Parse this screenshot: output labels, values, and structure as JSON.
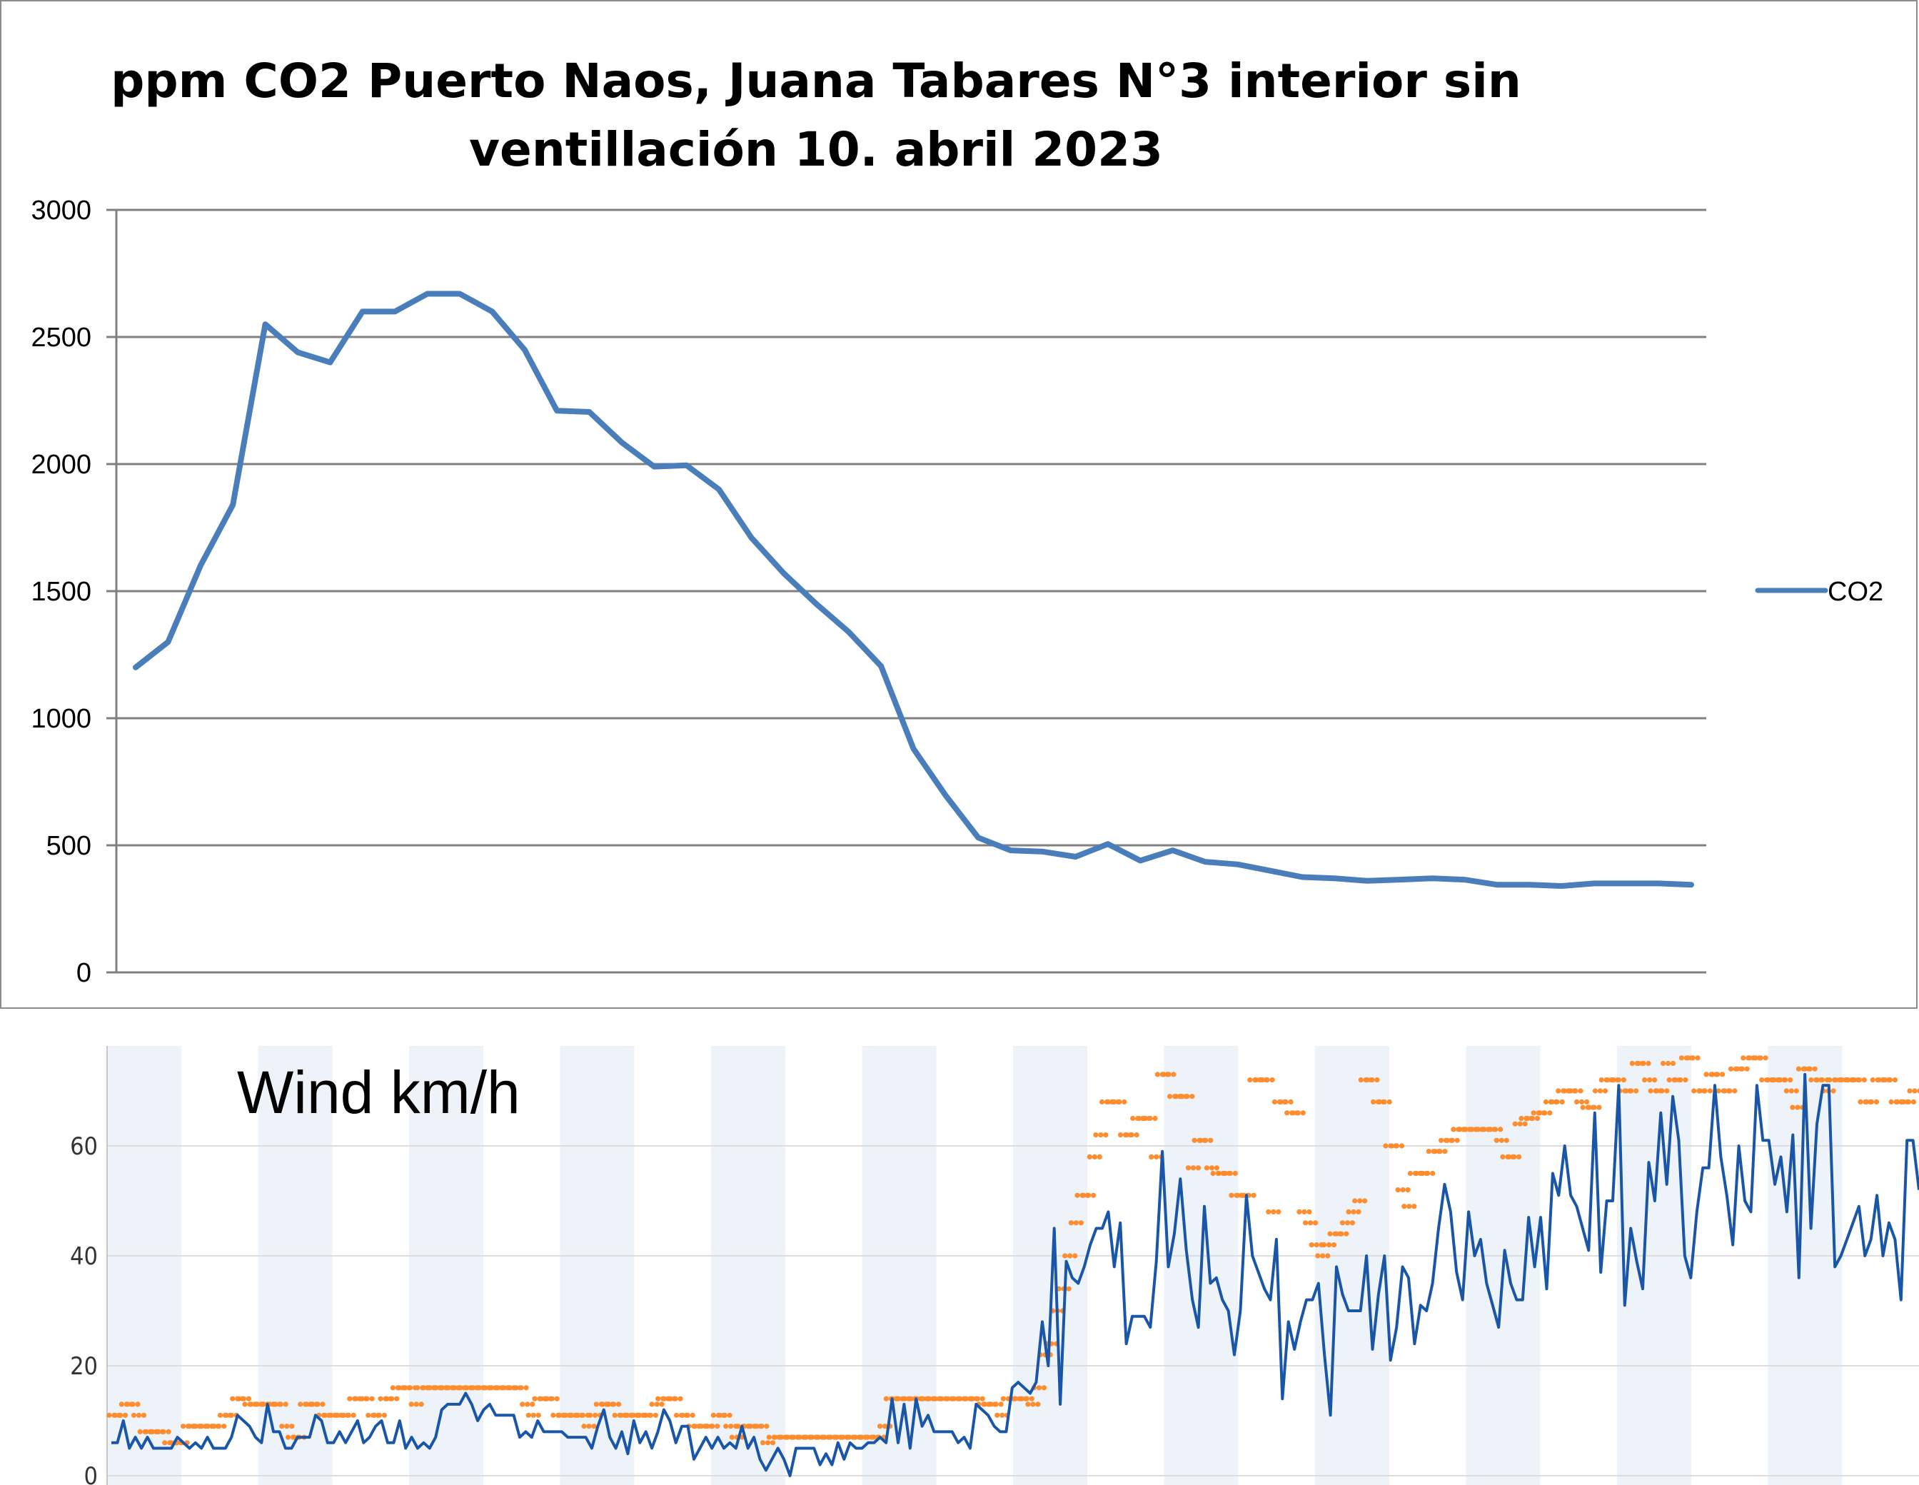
{
  "chart_data": [
    {
      "type": "line",
      "title": "ppm CO2 Puerto Naos, Juana Tabares N°3 interior sin ventillación 10. abril 2023",
      "title_lines": [
        "ppm CO2 Puerto Naos, Juana Tabares N°3 interior sin",
        "ventillación 10. abril 2023"
      ],
      "xlabel": "",
      "ylabel": "",
      "ylim": [
        0,
        3000
      ],
      "y_ticks": [
        "0",
        "500",
        "1000",
        "1500",
        "2000",
        "2500",
        "3000"
      ],
      "grid": true,
      "legend": "right",
      "series": [
        {
          "name": "CO2",
          "color": "#4a7ebb",
          "values": [
            1200,
            1300,
            1600,
            1840,
            2550,
            2440,
            2400,
            2600,
            2600,
            2670,
            2670,
            2600,
            2450,
            2210,
            2205,
            2085,
            1990,
            1995,
            1900,
            1710,
            1570,
            1450,
            1340,
            1205,
            880,
            695,
            530,
            480,
            475,
            455,
            505,
            440,
            480,
            435,
            425,
            400,
            375,
            370,
            360,
            365,
            370,
            365,
            345,
            345,
            340,
            350,
            350,
            350,
            345
          ]
        }
      ]
    },
    {
      "type": "line",
      "title": "Wind km/h",
      "xlabel": "",
      "ylabel": "",
      "ylim": [
        0,
        78
      ],
      "y_ticks": [
        "0",
        "20",
        "40",
        "60"
      ],
      "grid": true,
      "series": [
        {
          "color": "#1a56a8",
          "values": [
            6,
            6,
            10,
            5,
            7,
            5,
            7,
            5,
            5,
            5,
            5,
            7,
            6,
            5,
            6,
            5,
            7,
            5,
            5,
            5,
            7,
            11,
            10,
            9,
            7,
            6,
            13,
            8,
            8,
            5,
            5,
            7,
            7,
            7,
            11,
            10,
            6,
            6,
            8,
            6,
            8,
            10,
            6,
            7,
            9,
            10,
            6,
            6,
            10,
            5,
            7,
            5,
            6,
            5,
            7,
            12,
            13,
            13,
            13,
            15,
            13,
            10,
            12,
            13,
            11,
            11,
            11,
            11,
            7,
            8,
            7,
            10,
            8,
            8,
            8,
            8,
            7,
            7,
            7,
            7,
            5,
            9,
            12,
            7,
            5,
            8,
            4,
            10,
            6,
            8,
            5,
            8,
            12,
            10,
            6,
            9,
            9,
            3,
            5,
            7,
            5,
            7,
            5,
            6,
            5,
            9,
            5,
            7,
            3,
            1,
            3,
            5,
            3,
            0,
            5,
            5,
            5,
            5,
            2,
            4,
            2,
            6,
            3,
            6,
            5,
            5,
            6,
            6,
            7,
            6,
            14,
            6,
            13,
            5,
            14,
            9,
            11,
            8,
            8,
            8,
            8,
            6,
            7,
            5,
            13,
            12,
            11,
            9,
            8,
            8,
            16,
            17,
            16,
            15,
            17,
            28,
            20,
            45,
            13,
            39,
            36,
            35,
            38,
            42,
            45,
            45,
            48,
            38,
            46,
            24,
            29,
            29,
            29,
            27,
            39,
            59,
            38,
            44,
            54,
            41,
            32,
            27,
            49,
            35,
            36,
            32,
            30,
            22,
            30,
            51,
            40,
            37,
            34,
            32,
            43,
            14,
            28,
            23,
            28,
            32,
            32,
            35,
            22,
            11,
            38,
            33,
            30,
            30,
            30,
            40,
            23,
            33,
            40,
            21,
            27,
            38,
            36,
            24,
            31,
            30,
            35,
            45,
            53,
            48,
            37,
            32,
            48,
            40,
            43,
            35,
            31,
            27,
            41,
            35,
            32,
            32,
            47,
            38,
            47,
            34,
            55,
            51,
            60,
            51,
            49,
            45,
            41,
            66,
            37,
            50,
            50,
            71,
            31,
            45,
            39,
            34,
            57,
            50,
            66,
            53,
            69,
            61,
            40,
            36,
            48,
            56,
            56,
            71,
            58,
            51,
            42,
            60,
            50,
            48,
            71,
            61,
            61,
            53,
            58,
            48,
            62,
            36,
            73,
            45,
            64,
            71,
            71,
            38,
            40,
            43,
            46,
            49,
            40,
            43,
            51,
            40,
            46,
            43,
            32,
            61,
            61,
            52
          ]
        },
        {
          "color": "#ff8c2e",
          "values": [
            11,
            11,
            13,
            13,
            11,
            8,
            8,
            8,
            8,
            6,
            6,
            6,
            9,
            9,
            9,
            9,
            9,
            9,
            11,
            11,
            14,
            14,
            13,
            13,
            13,
            13,
            13,
            13,
            9,
            7,
            7,
            13,
            13,
            13,
            11,
            11,
            11,
            11,
            11,
            14,
            14,
            14,
            11,
            11,
            14,
            14,
            16,
            16,
            16,
            13,
            16,
            16,
            16,
            16,
            16,
            16,
            16,
            16,
            16,
            16,
            16,
            16,
            16,
            16,
            16,
            16,
            16,
            13,
            11,
            14,
            14,
            14,
            11,
            11,
            11,
            11,
            11,
            9,
            11,
            13,
            13,
            13,
            11,
            11,
            11,
            11,
            11,
            11,
            13,
            14,
            14,
            14,
            11,
            11,
            9,
            9,
            9,
            9,
            11,
            11,
            9,
            7,
            9,
            9,
            9,
            9,
            6,
            7,
            7,
            7,
            7,
            7,
            7,
            7,
            7,
            7,
            7,
            7,
            7,
            7,
            7,
            7,
            7,
            7,
            7,
            9,
            14,
            14,
            14,
            14,
            14,
            14,
            14,
            14,
            14,
            14,
            14,
            14,
            14,
            14,
            14,
            13,
            13,
            13,
            11,
            14,
            14,
            14,
            14,
            13,
            16,
            22,
            24,
            30,
            34,
            40,
            46,
            51,
            51,
            58,
            62,
            68,
            68,
            68,
            62,
            62,
            65,
            65,
            65,
            58,
            73,
            73,
            69,
            69,
            69,
            56,
            61,
            61,
            56,
            55,
            55,
            55,
            51,
            51,
            51,
            72,
            72,
            72,
            48,
            68,
            68,
            66,
            66,
            48,
            46,
            42,
            40,
            42,
            44,
            44,
            46,
            48,
            50,
            72,
            72,
            68,
            68,
            60,
            60,
            52,
            49,
            55,
            55,
            55,
            59,
            59,
            61,
            61,
            63,
            63,
            63,
            63,
            63,
            63,
            63,
            61,
            58,
            58,
            64,
            65,
            65,
            66,
            66,
            68,
            68,
            70,
            70,
            70,
            68,
            67,
            67,
            70,
            72,
            72,
            72,
            70,
            70,
            75,
            75,
            72,
            70,
            70,
            75,
            72,
            72,
            76,
            76,
            70,
            70,
            73,
            73,
            70,
            70,
            74,
            74,
            76,
            76,
            76,
            72,
            72,
            72,
            72,
            70,
            67,
            74,
            74,
            72,
            72,
            70,
            72,
            72,
            72,
            72,
            72,
            68,
            68,
            72,
            72,
            72,
            68,
            68,
            68,
            70
          ]
        }
      ]
    }
  ],
  "colors": {
    "co2_line": "#4a7ebb",
    "wind_line": "#1a56a8",
    "gust_dots": "#ff8c2e",
    "grid": "#808080",
    "band": "#edf3f9"
  }
}
